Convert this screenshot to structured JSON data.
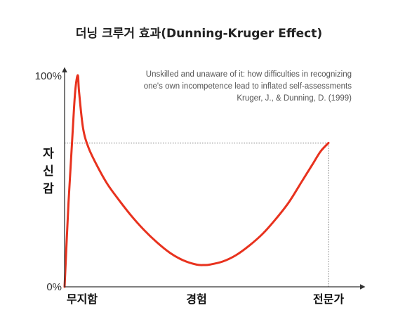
{
  "title": "더닝 크루거 효과(Dunning-Kruger Effect)",
  "chart_data": {
    "type": "line",
    "title": "더닝 크루거 효과(Dunning-Kruger Effect)",
    "xlabel": "",
    "ylabel": "자신감",
    "y_tick_labels": [
      "0%",
      "100%"
    ],
    "ylim": [
      0,
      100
    ],
    "xlim": [
      0,
      100
    ],
    "x_tick_labels": [
      "무지함",
      "경험",
      "전문가"
    ],
    "x_tick_positions": [
      0,
      50,
      100
    ],
    "annotation_lines": [
      "Unskilled and unaware of it: how difficulties in recognizing",
      "one's own incompetence lead to inflated self-assessments",
      "Kruger, J., & Dunning, D. (1999)"
    ],
    "reference_level": 68,
    "grid": false,
    "legend": "none",
    "series_color": "#e8321e",
    "series": [
      {
        "x": [
          0,
          1.5,
          3,
          4,
          5,
          5.5,
          7,
          9,
          12,
          16,
          20,
          25,
          30,
          35,
          40,
          45,
          50,
          53,
          55,
          60,
          65,
          70,
          75,
          80,
          85,
          90,
          94,
          97,
          100
        ],
        "values": [
          0,
          40,
          72,
          92,
          100,
          92,
          75,
          66,
          58,
          49,
          42,
          34,
          27,
          21,
          16,
          12.5,
          10.5,
          10.3,
          10.5,
          12,
          15,
          19.5,
          25,
          32,
          40,
          50,
          58,
          64,
          68
        ]
      }
    ]
  }
}
